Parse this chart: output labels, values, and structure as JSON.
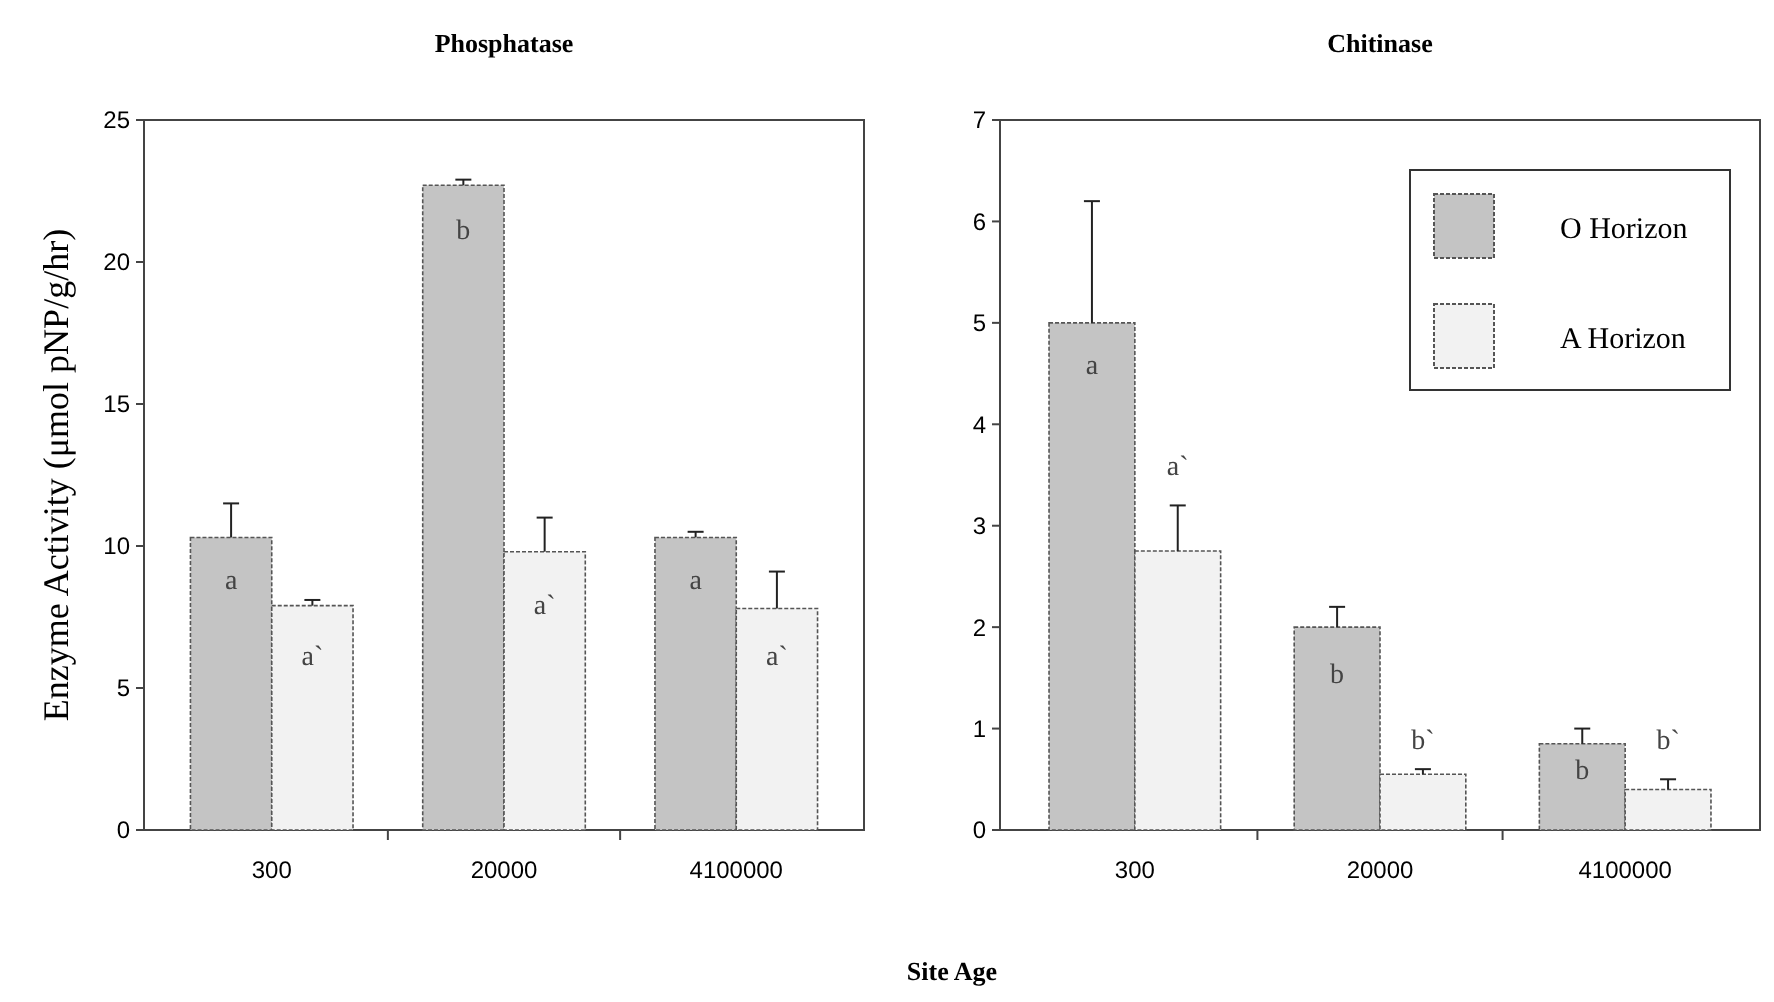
{
  "chart_data": [
    {
      "type": "bar",
      "title": "Phosphatase",
      "ylabel": "Enzyme Activity (μmol pNP/g/hr)",
      "xlabel": "Site Age",
      "categories": [
        "300",
        "20000",
        "4100000"
      ],
      "ylim": [
        0,
        25
      ],
      "yticks": [
        0,
        5,
        10,
        15,
        20,
        25
      ],
      "legend": false,
      "series": [
        {
          "color": "#c4c4c4",
          "values": [
            10.3,
            22.7,
            10.3
          ],
          "errors": [
            1.2,
            0.2,
            0.2
          ]
        },
        {
          "color": "#f2f2f2",
          "values": [
            7.9,
            9.8,
            7.8
          ],
          "errors": [
            0.2,
            1.2,
            1.3
          ]
        }
      ],
      "annotations": [
        {
          "text": "a",
          "x": "300",
          "y": 8.5
        },
        {
          "text": "b",
          "x": "20000",
          "y": 20.8
        },
        {
          "text": "a",
          "x": "4100000",
          "y": 8.5
        },
        {
          "text": "a`",
          "x": "300",
          "y": 5.8
        },
        {
          "text": "a`",
          "x": "20000",
          "y": 7.6
        },
        {
          "text": "a`",
          "x": "4100000",
          "y": 5.8
        }
      ]
    },
    {
      "type": "bar",
      "title": "Chitinase",
      "categories": [
        "300",
        "20000",
        "4100000"
      ],
      "ylim": [
        0,
        7
      ],
      "yticks": [
        0,
        1,
        2,
        3,
        4,
        5,
        6,
        7
      ],
      "legend": "top right",
      "series": [
        {
          "name": "O Horizon",
          "color": "#c4c4c4",
          "values": [
            5.0,
            2.0,
            0.85
          ],
          "errors": [
            1.2,
            0.2,
            0.15
          ]
        },
        {
          "name": "A Horizon",
          "color": "#f2f2f2",
          "values": [
            2.75,
            0.55,
            0.4
          ],
          "errors": [
            0.45,
            0.05,
            0.1
          ]
        }
      ],
      "annotations": [
        {
          "text": "a",
          "x": "300",
          "y": 4.5
        },
        {
          "text": "b",
          "x": "20000",
          "y": 1.45
        },
        {
          "text": "b",
          "x": "4100000",
          "y": 0.5
        },
        {
          "text": "a`",
          "x": "300",
          "y": 3.5
        },
        {
          "text": "b`",
          "x": "20000",
          "y": 0.8
        },
        {
          "text": "b`",
          "x": "4100000",
          "y": 0.8
        }
      ]
    }
  ]
}
